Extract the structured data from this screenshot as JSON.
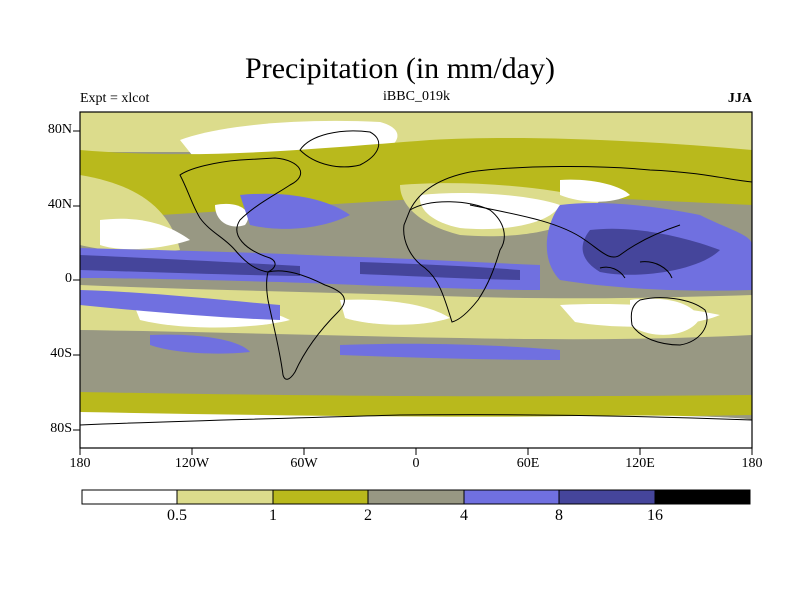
{
  "map": {
    "title": "Precipitation (in mm/day)",
    "left_label": "Expt = xlcot",
    "center_label": "iBBC_019k",
    "right_label": "JJA",
    "lat_ticks": [
      "80N",
      "40N",
      "0",
      "40S",
      "80S"
    ],
    "lon_ticks": [
      "180",
      "120W",
      "60W",
      "0",
      "60E",
      "120E",
      "180"
    ],
    "colorbar": {
      "levels": [
        "0.5",
        "1",
        "2",
        "4",
        "8",
        "16"
      ],
      "colors": [
        "#ffffff",
        "#dcdc8c",
        "#b9b91c",
        "#989883",
        "#7070e0",
        "#45459b",
        "#000000"
      ]
    }
  }
}
